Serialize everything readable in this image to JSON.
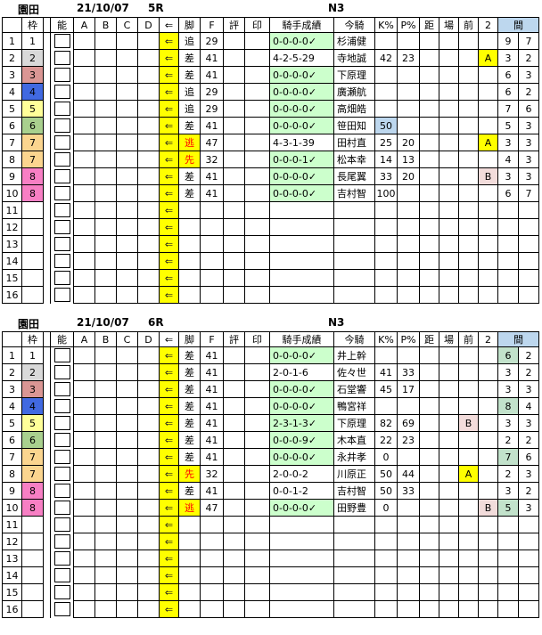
{
  "glyphs": {
    "arrow": "⇐"
  },
  "colors": {
    "highlight_yellow": "#ffff00",
    "lightblue": "#bdd7ee",
    "green": "#ccffcc",
    "ma_green": "#c2e2cb",
    "pink": "#f2dcdb",
    "red_text": "#ff0000",
    "waku": {
      "1": "#ffffff",
      "2": "#d9d9d9",
      "3": "#da9694",
      "4": "#4169e1",
      "5": "#ffff99",
      "6": "#a9d08e",
      "7": "#fbd58f",
      "8": "#f77fc4"
    }
  },
  "header": {
    "cols": [
      "",
      "枠",
      "",
      "能",
      "A",
      "B",
      "C",
      "D",
      "⇐",
      "脚",
      "F",
      "評",
      "印",
      "騎手成績",
      "今騎",
      "K%",
      "P%",
      "距",
      "場",
      "前",
      "2",
      "間"
    ]
  },
  "tables": [
    {
      "track": "園田",
      "date": "21/10/07",
      "race": "5R",
      "grade": "N3",
      "rows": [
        {
          "n": "1",
          "w": "1",
          "ky": "追",
          "f": "29",
          "s": "0-0-0-0✓",
          "sg": true,
          "j": "杉浦健",
          "m1": "9",
          "m2": "7"
        },
        {
          "n": "2",
          "w": "2",
          "ky": "差",
          "f": "41",
          "s": "4-2-5-29",
          "j": "寺地誠",
          "k": "42",
          "p": "23",
          "two": "A",
          "twob": "Y",
          "m1": "3",
          "m2": "2"
        },
        {
          "n": "3",
          "w": "3",
          "ky": "差",
          "f": "41",
          "s": "0-0-0-0✓",
          "sg": true,
          "j": "下原理",
          "m1": "6",
          "m2": "3"
        },
        {
          "n": "4",
          "w": "4",
          "ky": "追",
          "f": "29",
          "s": "0-0-0-0✓",
          "sg": true,
          "j": "廣瀬航",
          "m1": "6",
          "m2": "2"
        },
        {
          "n": "5",
          "w": "5",
          "ky": "追",
          "f": "29",
          "s": "0-0-0-0✓",
          "sg": true,
          "j": "高畑皓",
          "m1": "7",
          "m2": "6"
        },
        {
          "n": "6",
          "w": "6",
          "ky": "差",
          "f": "41",
          "s": "0-0-0-0✓",
          "sg": true,
          "j": "笹田知",
          "k": "50",
          "kb": true,
          "m1": "5",
          "m2": "3"
        },
        {
          "n": "7",
          "w": "7",
          "ky": "逃",
          "khl": true,
          "f": "47",
          "s": "4-3-1-39",
          "j": "田村直",
          "k": "25",
          "p": "20",
          "two": "A",
          "twob": "Y",
          "m1": "3",
          "m2": "3"
        },
        {
          "n": "8",
          "w": "7",
          "ky": "先",
          "khl": true,
          "f": "32",
          "s": "0-0-0-1✓",
          "sg": true,
          "j": "松本幸",
          "k": "14",
          "p": "13",
          "m1": "4",
          "m2": "3"
        },
        {
          "n": "9",
          "w": "8",
          "ky": "差",
          "f": "41",
          "s": "0-0-0-0✓",
          "sg": true,
          "j": "長尾翼",
          "k": "33",
          "p": "20",
          "two": "B",
          "twob": "P",
          "m1": "3",
          "m2": "3"
        },
        {
          "n": "10",
          "w": "8",
          "ky": "差",
          "f": "41",
          "s": "0-0-0-0✓",
          "sg": true,
          "j": "吉村智",
          "k": "100",
          "m1": "6",
          "m2": "7"
        },
        {
          "n": "11"
        },
        {
          "n": "12"
        },
        {
          "n": "13"
        },
        {
          "n": "14"
        },
        {
          "n": "15"
        },
        {
          "n": "16"
        }
      ]
    },
    {
      "track": "園田",
      "date": "21/10/07",
      "race": "6R",
      "grade": "N3",
      "rows": [
        {
          "n": "1",
          "w": "1",
          "ky": "差",
          "f": "41",
          "s": "0-0-0-0✓",
          "sg": true,
          "j": "井上幹",
          "m1": "6",
          "m1g": true,
          "m2": "2"
        },
        {
          "n": "2",
          "w": "2",
          "ky": "差",
          "f": "41",
          "s": "2-0-1-6",
          "j": "佐々世",
          "k": "41",
          "p": "33",
          "m1": "3",
          "m2": "2"
        },
        {
          "n": "3",
          "w": "3",
          "ky": "差",
          "f": "41",
          "s": "0-0-0-0✓",
          "sg": true,
          "j": "石堂響",
          "k": "45",
          "p": "17",
          "m1": "3",
          "m2": "3"
        },
        {
          "n": "4",
          "w": "4",
          "ky": "差",
          "f": "41",
          "s": "0-0-0-0✓",
          "sg": true,
          "j": "鴨宮祥",
          "m1": "8",
          "m1g": true,
          "m2": "4"
        },
        {
          "n": "5",
          "w": "5",
          "ky": "差",
          "f": "41",
          "s": "2-3-1-3✓",
          "sg": true,
          "j": "下原理",
          "k": "82",
          "p": "69",
          "mae": "B",
          "maeb": "P",
          "m1": "3",
          "m2": "3"
        },
        {
          "n": "6",
          "w": "6",
          "ky": "差",
          "f": "41",
          "s": "0-0-0-9✓",
          "sg": true,
          "j": "木本直",
          "k": "22",
          "p": "23",
          "m1": "2",
          "m2": "2"
        },
        {
          "n": "7",
          "w": "7",
          "ky": "差",
          "f": "41",
          "s": "0-0-0-0✓",
          "sg": true,
          "j": "永井孝",
          "k": "0",
          "m1": "7",
          "m1g": true,
          "m2": "6"
        },
        {
          "n": "8",
          "w": "7",
          "ky": "先",
          "khl": true,
          "f": "32",
          "s": "2-0-0-2",
          "j": "川原正",
          "k": "50",
          "p": "44",
          "mae": "A",
          "maeb": "Y",
          "m1": "2",
          "m2": "3"
        },
        {
          "n": "9",
          "w": "8",
          "ky": "差",
          "f": "41",
          "s": "0-0-1-2",
          "j": "吉村智",
          "k": "50",
          "p": "33",
          "m1": "3",
          "m2": "2"
        },
        {
          "n": "10",
          "w": "8",
          "ky": "逃",
          "khl": true,
          "f": "47",
          "s": "0-0-0-0✓",
          "sg": true,
          "j": "田野豊",
          "k": "0",
          "two": "B",
          "twob": "P",
          "m1": "5",
          "m1g": true,
          "m2": "3"
        },
        {
          "n": "11"
        },
        {
          "n": "12"
        },
        {
          "n": "13"
        },
        {
          "n": "14"
        },
        {
          "n": "15"
        },
        {
          "n": "16"
        }
      ]
    }
  ]
}
